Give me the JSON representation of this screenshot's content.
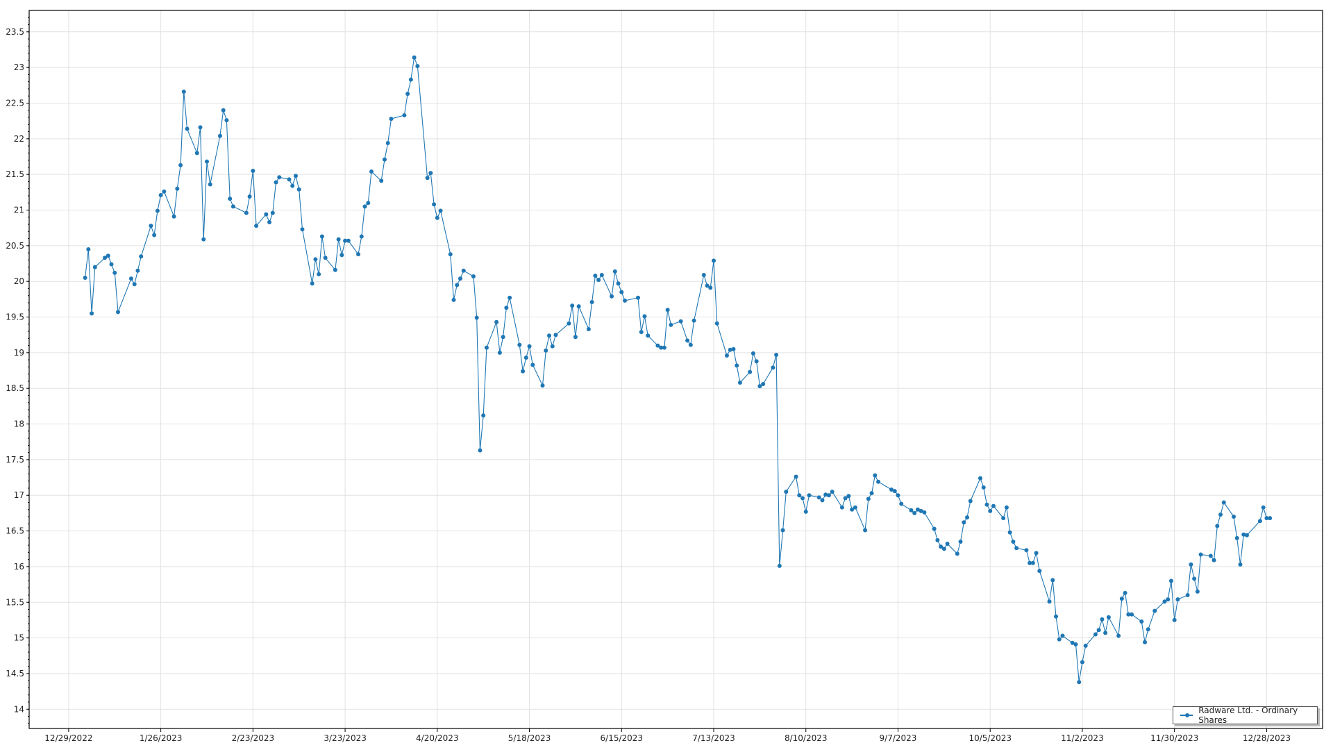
{
  "chart_data": {
    "type": "line",
    "title": "",
    "xlabel": "",
    "ylabel": "",
    "x_type": "date",
    "xlim": [
      "2022-12-17",
      "2024-01-14"
    ],
    "ylim": [
      13.73,
      23.8
    ],
    "x_ticks": [
      "12/29/2022",
      "1/26/2023",
      "2/23/2023",
      "3/23/2023",
      "4/20/2023",
      "5/18/2023",
      "6/15/2023",
      "7/13/2023",
      "8/10/2023",
      "9/7/2023",
      "10/5/2023",
      "11/2/2023",
      "11/30/2023",
      "12/28/2023"
    ],
    "y_ticks": [
      "14",
      "14.5",
      "15",
      "15.5",
      "16",
      "16.5",
      "17",
      "17.5",
      "18",
      "18.5",
      "19",
      "19.5",
      "20",
      "20.5",
      "21",
      "21.5",
      "22",
      "22.5",
      "23",
      "23.5"
    ],
    "grid": true,
    "legend_position": "bottom-right",
    "series_color": "#1f77b4",
    "series": [
      {
        "name": "Radware Ltd. - Ordinary Shares",
        "points": [
          [
            "2023-01-03",
            20.05
          ],
          [
            "2023-01-04",
            20.45
          ],
          [
            "2023-01-05",
            19.55
          ],
          [
            "2023-01-06",
            20.2
          ],
          [
            "2023-01-09",
            20.33
          ],
          [
            "2023-01-10",
            20.36
          ],
          [
            "2023-01-11",
            20.24
          ],
          [
            "2023-01-12",
            20.12
          ],
          [
            "2023-01-13",
            19.57
          ],
          [
            "2023-01-17",
            20.04
          ],
          [
            "2023-01-18",
            19.96
          ],
          [
            "2023-01-19",
            20.15
          ],
          [
            "2023-01-20",
            20.35
          ],
          [
            "2023-01-23",
            20.78
          ],
          [
            "2023-01-24",
            20.65
          ],
          [
            "2023-01-25",
            20.99
          ],
          [
            "2023-01-26",
            21.21
          ],
          [
            "2023-01-27",
            21.26
          ],
          [
            "2023-01-30",
            20.91
          ],
          [
            "2023-01-31",
            21.3
          ],
          [
            "2023-02-01",
            21.63
          ],
          [
            "2023-02-02",
            22.66
          ],
          [
            "2023-02-03",
            22.14
          ],
          [
            "2023-02-06",
            21.8
          ],
          [
            "2023-02-07",
            22.16
          ],
          [
            "2023-02-08",
            20.59
          ],
          [
            "2023-02-09",
            21.68
          ],
          [
            "2023-02-10",
            21.36
          ],
          [
            "2023-02-13",
            22.04
          ],
          [
            "2023-02-14",
            22.4
          ],
          [
            "2023-02-15",
            22.26
          ],
          [
            "2023-02-16",
            21.16
          ],
          [
            "2023-02-17",
            21.05
          ],
          [
            "2023-02-21",
            20.96
          ],
          [
            "2023-02-22",
            21.19
          ],
          [
            "2023-02-23",
            21.55
          ],
          [
            "2023-02-24",
            20.78
          ],
          [
            "2023-02-27",
            20.94
          ],
          [
            "2023-02-28",
            20.83
          ],
          [
            "2023-03-01",
            20.96
          ],
          [
            "2023-03-02",
            21.39
          ],
          [
            "2023-03-03",
            21.46
          ],
          [
            "2023-03-06",
            21.43
          ],
          [
            "2023-03-07",
            21.34
          ],
          [
            "2023-03-08",
            21.48
          ],
          [
            "2023-03-09",
            21.29
          ],
          [
            "2023-03-10",
            20.73
          ],
          [
            "2023-03-13",
            19.97
          ],
          [
            "2023-03-14",
            20.31
          ],
          [
            "2023-03-15",
            20.1
          ],
          [
            "2023-03-16",
            20.63
          ],
          [
            "2023-03-17",
            20.33
          ],
          [
            "2023-03-20",
            20.16
          ],
          [
            "2023-03-21",
            20.59
          ],
          [
            "2023-03-22",
            20.37
          ],
          [
            "2023-03-23",
            20.57
          ],
          [
            "2023-03-24",
            20.57
          ],
          [
            "2023-03-27",
            20.38
          ],
          [
            "2023-03-28",
            20.63
          ],
          [
            "2023-03-29",
            21.05
          ],
          [
            "2023-03-30",
            21.1
          ],
          [
            "2023-03-31",
            21.54
          ],
          [
            "2023-04-03",
            21.41
          ],
          [
            "2023-04-04",
            21.71
          ],
          [
            "2023-04-05",
            21.94
          ],
          [
            "2023-04-06",
            22.28
          ],
          [
            "2023-04-10",
            22.33
          ],
          [
            "2023-04-11",
            22.63
          ],
          [
            "2023-04-12",
            22.83
          ],
          [
            "2023-04-13",
            23.14
          ],
          [
            "2023-04-14",
            23.02
          ],
          [
            "2023-04-17",
            21.45
          ],
          [
            "2023-04-18",
            21.52
          ],
          [
            "2023-04-19",
            21.08
          ],
          [
            "2023-04-20",
            20.89
          ],
          [
            "2023-04-21",
            20.99
          ],
          [
            "2023-04-24",
            20.38
          ],
          [
            "2023-04-25",
            19.74
          ],
          [
            "2023-04-26",
            19.95
          ],
          [
            "2023-04-27",
            20.04
          ],
          [
            "2023-04-28",
            20.15
          ],
          [
            "2023-05-01",
            20.07
          ],
          [
            "2023-05-02",
            19.49
          ],
          [
            "2023-05-03",
            17.63
          ],
          [
            "2023-05-04",
            18.12
          ],
          [
            "2023-05-05",
            19.07
          ],
          [
            "2023-05-08",
            19.43
          ],
          [
            "2023-05-09",
            19.0
          ],
          [
            "2023-05-10",
            19.22
          ],
          [
            "2023-05-11",
            19.63
          ],
          [
            "2023-05-12",
            19.77
          ],
          [
            "2023-05-15",
            19.11
          ],
          [
            "2023-05-16",
            18.74
          ],
          [
            "2023-05-17",
            18.93
          ],
          [
            "2023-05-18",
            19.09
          ],
          [
            "2023-05-19",
            18.83
          ],
          [
            "2023-05-22",
            18.54
          ],
          [
            "2023-05-23",
            19.03
          ],
          [
            "2023-05-24",
            19.24
          ],
          [
            "2023-05-25",
            19.09
          ],
          [
            "2023-05-26",
            19.25
          ],
          [
            "2023-05-30",
            19.41
          ],
          [
            "2023-05-31",
            19.66
          ],
          [
            "2023-06-01",
            19.22
          ],
          [
            "2023-06-02",
            19.65
          ],
          [
            "2023-06-05",
            19.33
          ],
          [
            "2023-06-06",
            19.71
          ],
          [
            "2023-06-07",
            20.08
          ],
          [
            "2023-06-08",
            20.02
          ],
          [
            "2023-06-09",
            20.09
          ],
          [
            "2023-06-12",
            19.79
          ],
          [
            "2023-06-13",
            20.14
          ],
          [
            "2023-06-14",
            19.97
          ],
          [
            "2023-06-15",
            19.85
          ],
          [
            "2023-06-16",
            19.73
          ],
          [
            "2023-06-20",
            19.77
          ],
          [
            "2023-06-21",
            19.29
          ],
          [
            "2023-06-22",
            19.51
          ],
          [
            "2023-06-23",
            19.24
          ],
          [
            "2023-06-26",
            19.1
          ],
          [
            "2023-06-27",
            19.07
          ],
          [
            "2023-06-28",
            19.07
          ],
          [
            "2023-06-29",
            19.6
          ],
          [
            "2023-06-30",
            19.39
          ],
          [
            "2023-07-03",
            19.44
          ],
          [
            "2023-07-05",
            19.17
          ],
          [
            "2023-07-06",
            19.11
          ],
          [
            "2023-07-07",
            19.45
          ],
          [
            "2023-07-10",
            20.09
          ],
          [
            "2023-07-11",
            19.94
          ],
          [
            "2023-07-12",
            19.91
          ],
          [
            "2023-07-13",
            20.29
          ],
          [
            "2023-07-14",
            19.41
          ],
          [
            "2023-07-17",
            18.96
          ],
          [
            "2023-07-18",
            19.04
          ],
          [
            "2023-07-19",
            19.05
          ],
          [
            "2023-07-20",
            18.82
          ],
          [
            "2023-07-21",
            18.58
          ],
          [
            "2023-07-24",
            18.73
          ],
          [
            "2023-07-25",
            18.99
          ],
          [
            "2023-07-26",
            18.88
          ],
          [
            "2023-07-27",
            18.53
          ],
          [
            "2023-07-28",
            18.56
          ],
          [
            "2023-07-31",
            18.79
          ],
          [
            "2023-08-01",
            18.97
          ],
          [
            "2023-08-02",
            16.01
          ],
          [
            "2023-08-03",
            16.51
          ],
          [
            "2023-08-04",
            17.05
          ],
          [
            "2023-08-07",
            17.26
          ],
          [
            "2023-08-08",
            17.0
          ],
          [
            "2023-08-09",
            16.96
          ],
          [
            "2023-08-10",
            16.77
          ],
          [
            "2023-08-11",
            17.0
          ],
          [
            "2023-08-14",
            16.97
          ],
          [
            "2023-08-15",
            16.93
          ],
          [
            "2023-08-16",
            17.01
          ],
          [
            "2023-08-17",
            17.0
          ],
          [
            "2023-08-18",
            17.05
          ],
          [
            "2023-08-21",
            16.83
          ],
          [
            "2023-08-22",
            16.96
          ],
          [
            "2023-08-23",
            16.99
          ],
          [
            "2023-08-24",
            16.8
          ],
          [
            "2023-08-25",
            16.83
          ],
          [
            "2023-08-28",
            16.51
          ],
          [
            "2023-08-29",
            16.95
          ],
          [
            "2023-08-30",
            17.03
          ],
          [
            "2023-08-31",
            17.28
          ],
          [
            "2023-09-01",
            17.19
          ],
          [
            "2023-09-05",
            17.08
          ],
          [
            "2023-09-06",
            17.06
          ],
          [
            "2023-09-07",
            17.0
          ],
          [
            "2023-09-08",
            16.88
          ],
          [
            "2023-09-11",
            16.79
          ],
          [
            "2023-09-12",
            16.75
          ],
          [
            "2023-09-13",
            16.8
          ],
          [
            "2023-09-14",
            16.78
          ],
          [
            "2023-09-15",
            16.76
          ],
          [
            "2023-09-18",
            16.53
          ],
          [
            "2023-09-19",
            16.37
          ],
          [
            "2023-09-20",
            16.28
          ],
          [
            "2023-09-21",
            16.25
          ],
          [
            "2023-09-22",
            16.32
          ],
          [
            "2023-09-25",
            16.18
          ],
          [
            "2023-09-26",
            16.35
          ],
          [
            "2023-09-27",
            16.62
          ],
          [
            "2023-09-28",
            16.69
          ],
          [
            "2023-09-29",
            16.92
          ],
          [
            "2023-10-02",
            17.24
          ],
          [
            "2023-10-03",
            17.11
          ],
          [
            "2023-10-04",
            16.87
          ],
          [
            "2023-10-05",
            16.78
          ],
          [
            "2023-10-06",
            16.85
          ],
          [
            "2023-10-09",
            16.68
          ],
          [
            "2023-10-10",
            16.83
          ],
          [
            "2023-10-11",
            16.48
          ],
          [
            "2023-10-12",
            16.35
          ],
          [
            "2023-10-13",
            16.26
          ],
          [
            "2023-10-16",
            16.23
          ],
          [
            "2023-10-17",
            16.05
          ],
          [
            "2023-10-18",
            16.05
          ],
          [
            "2023-10-19",
            16.19
          ],
          [
            "2023-10-20",
            15.94
          ],
          [
            "2023-10-23",
            15.51
          ],
          [
            "2023-10-24",
            15.81
          ],
          [
            "2023-10-25",
            15.3
          ],
          [
            "2023-10-26",
            14.98
          ],
          [
            "2023-10-27",
            15.03
          ],
          [
            "2023-10-30",
            14.93
          ],
          [
            "2023-10-31",
            14.91
          ],
          [
            "2023-11-01",
            14.38
          ],
          [
            "2023-11-02",
            14.66
          ],
          [
            "2023-11-03",
            14.89
          ],
          [
            "2023-11-06",
            15.05
          ],
          [
            "2023-11-07",
            15.11
          ],
          [
            "2023-11-08",
            15.26
          ],
          [
            "2023-11-09",
            15.07
          ],
          [
            "2023-11-10",
            15.29
          ],
          [
            "2023-11-13",
            15.03
          ],
          [
            "2023-11-14",
            15.55
          ],
          [
            "2023-11-15",
            15.63
          ],
          [
            "2023-11-16",
            15.33
          ],
          [
            "2023-11-17",
            15.33
          ],
          [
            "2023-11-20",
            15.23
          ],
          [
            "2023-11-21",
            14.94
          ],
          [
            "2023-11-22",
            15.12
          ],
          [
            "2023-11-24",
            15.38
          ],
          [
            "2023-11-27",
            15.51
          ],
          [
            "2023-11-28",
            15.54
          ],
          [
            "2023-11-29",
            15.8
          ],
          [
            "2023-11-30",
            15.25
          ],
          [
            "2023-12-01",
            15.54
          ],
          [
            "2023-12-04",
            15.6
          ],
          [
            "2023-12-05",
            16.03
          ],
          [
            "2023-12-06",
            15.83
          ],
          [
            "2023-12-07",
            15.65
          ],
          [
            "2023-12-08",
            16.17
          ],
          [
            "2023-12-11",
            16.15
          ],
          [
            "2023-12-12",
            16.09
          ],
          [
            "2023-12-13",
            16.57
          ],
          [
            "2023-12-14",
            16.73
          ],
          [
            "2023-12-15",
            16.9
          ],
          [
            "2023-12-18",
            16.7
          ],
          [
            "2023-12-19",
            16.4
          ],
          [
            "2023-12-20",
            16.03
          ],
          [
            "2023-12-21",
            16.45
          ],
          [
            "2023-12-22",
            16.44
          ],
          [
            "2023-12-26",
            16.64
          ],
          [
            "2023-12-27",
            16.83
          ],
          [
            "2023-12-28",
            16.68
          ],
          [
            "2023-12-29",
            16.68
          ]
        ]
      }
    ]
  }
}
